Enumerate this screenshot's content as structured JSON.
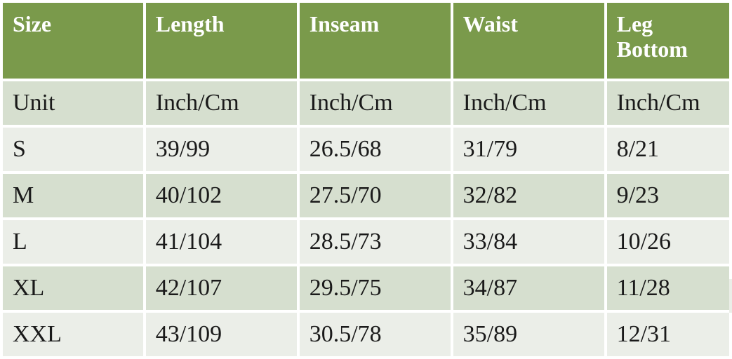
{
  "table": {
    "headers": [
      "Size",
      "Length",
      "Inseam",
      "Waist",
      "Leg Bottom"
    ],
    "rows": [
      [
        "Unit",
        "Inch/Cm",
        "Inch/Cm",
        "Inch/Cm",
        "Inch/Cm"
      ],
      [
        "S",
        "39/99",
        "26.5/68",
        "31/79",
        "8/21"
      ],
      [
        "M",
        "40/102",
        "27.5/70",
        "32/82",
        "9/23"
      ],
      [
        "L",
        "41/104",
        "28.5/73",
        "33/84",
        "10/26"
      ],
      [
        "XL",
        "42/107",
        "29.5/75",
        "34/87",
        "11/28"
      ],
      [
        "XXL",
        "43/109",
        "30.5/78",
        "35/89",
        "12/31"
      ]
    ]
  },
  "colors": {
    "header_bg": "#7a9a4b",
    "header_text": "#ffffff",
    "row_dark": "#d6dfcf",
    "row_light": "#ebeee8",
    "body_text": "#1a1a1a"
  }
}
